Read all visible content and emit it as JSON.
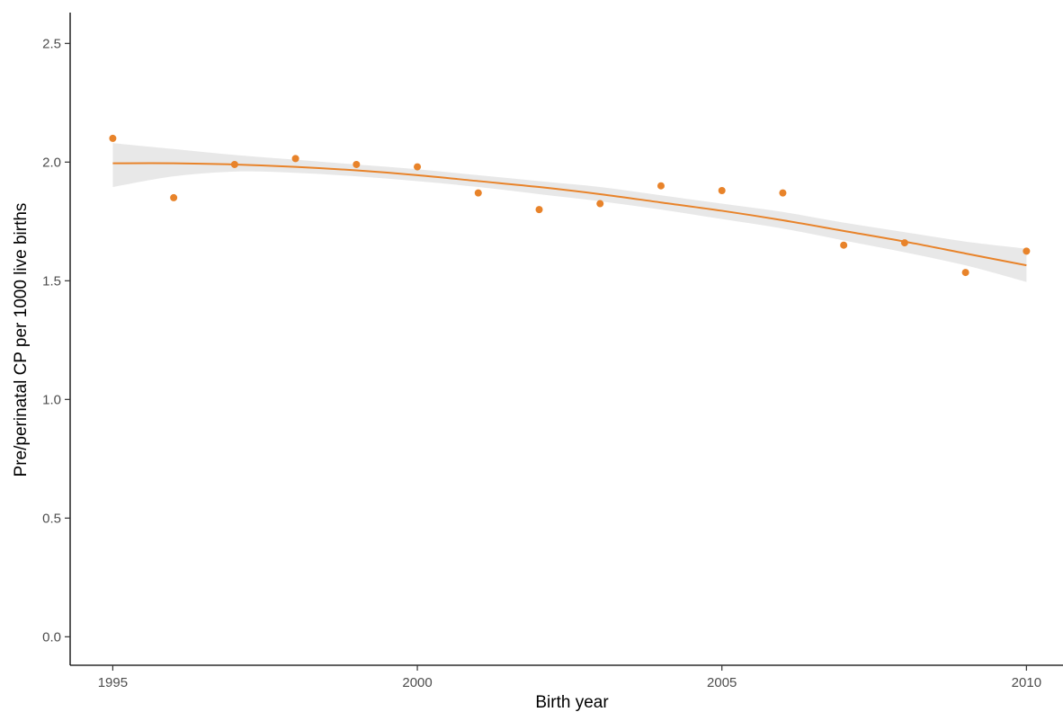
{
  "chart_data": {
    "type": "scatter",
    "xlabel": "Birth year",
    "ylabel": "Pre/perinatal CP per 1000 live births",
    "xlim": [
      1994.3,
      2010.6
    ],
    "ylim": [
      -0.12,
      2.63
    ],
    "x_ticks": [
      1995,
      2000,
      2005,
      2010
    ],
    "y_ticks": [
      0.0,
      0.5,
      1.0,
      1.5,
      2.0,
      2.5
    ],
    "x_tick_labels": [
      "1995",
      "2000",
      "2005",
      "2010"
    ],
    "y_tick_labels": [
      "0.0",
      "0.5",
      "1.0",
      "1.5",
      "2.0",
      "2.5"
    ],
    "grid": false,
    "points": {
      "color": "#E8832A",
      "x": [
        1995,
        1996,
        1997,
        1998,
        1999,
        2000,
        2001,
        2002,
        2003,
        2004,
        2005,
        2006,
        2007,
        2008,
        2009,
        2010
      ],
      "y": [
        2.1,
        1.85,
        1.99,
        2.015,
        1.99,
        1.98,
        1.87,
        1.8,
        1.825,
        1.9,
        1.88,
        1.87,
        1.65,
        1.66,
        1.535,
        1.625
      ]
    },
    "smooth": {
      "color": "#E8832A",
      "band_color": "#D9D9D9",
      "x": [
        1995,
        1996,
        1997,
        1998,
        1999,
        2000,
        2001,
        2002,
        2003,
        2004,
        2005,
        2006,
        2007,
        2008,
        2009,
        2010
      ],
      "y": [
        1.995,
        1.995,
        1.99,
        1.98,
        1.965,
        1.945,
        1.92,
        1.895,
        1.865,
        1.83,
        1.795,
        1.755,
        1.71,
        1.665,
        1.615,
        1.565
      ],
      "lower": [
        1.895,
        1.94,
        1.96,
        1.955,
        1.94,
        1.92,
        1.895,
        1.865,
        1.835,
        1.8,
        1.76,
        1.72,
        1.67,
        1.62,
        1.565,
        1.495
      ],
      "upper": [
        2.08,
        2.055,
        2.03,
        2.01,
        1.99,
        1.97,
        1.945,
        1.92,
        1.895,
        1.86,
        1.825,
        1.79,
        1.745,
        1.705,
        1.665,
        1.635
      ]
    }
  }
}
